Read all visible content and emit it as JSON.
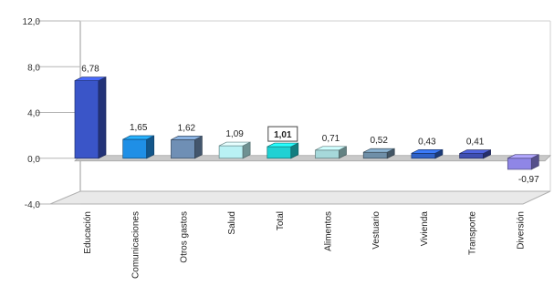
{
  "chart_data": {
    "type": "bar",
    "title": "",
    "xlabel": "",
    "ylabel": "",
    "ylim": [
      -4,
      12
    ],
    "yticks": [
      "12,0",
      "8,0",
      "4,0",
      "0,0",
      "-4,0"
    ],
    "yticks_values": [
      12,
      8,
      4,
      0,
      -4
    ],
    "categories": [
      "Educación",
      "Comunicaciones",
      "Otros gastos",
      "Salud",
      "Total",
      "Alimentos",
      "Vestuario",
      "Vivienda",
      "Transporte",
      "Diversión"
    ],
    "values": [
      6.78,
      1.65,
      1.62,
      1.09,
      1.01,
      0.71,
      0.52,
      0.43,
      0.41,
      -0.97
    ],
    "value_labels": [
      "6,78",
      "1,65",
      "1,62",
      "1,09",
      "1,01",
      "0,71",
      "0,52",
      "0,43",
      "0,41",
      "-0,97"
    ],
    "highlight_index": 4,
    "grid": false,
    "colors": [
      "#3a55c8",
      "#1f8fe6",
      "#6f8fb5",
      "#b9f1f4",
      "#1fd1d3",
      "#a6d8da",
      "#6f8fa8",
      "#2f62c8",
      "#3f4fb2",
      "#8f86e6"
    ]
  }
}
